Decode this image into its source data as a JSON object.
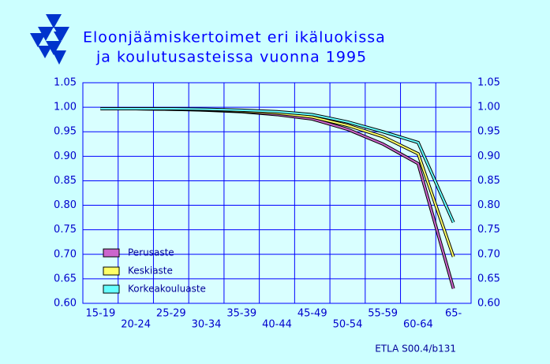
{
  "chart_data": {
    "type": "line",
    "title": [
      "Eloonjäämiskertoimet  eri  ikäluokissa",
      "ja  koulutusasteissa  vuonna  1995"
    ],
    "source": "ETLA S00.4/b131",
    "categories": [
      "15-19",
      "20-24",
      "25-29",
      "30-34",
      "35-39",
      "40-44",
      "45-49",
      "50-54",
      "55-59",
      "60-64",
      "65-"
    ],
    "series": [
      {
        "name": "Perusaste",
        "color": "#cc66cc",
        "values": [
          0.997,
          0.997,
          0.996,
          0.994,
          0.991,
          0.985,
          0.976,
          0.955,
          0.925,
          0.885,
          0.63
        ]
      },
      {
        "name": "Keskiaste",
        "color": "#ffff66",
        "values": [
          0.997,
          0.997,
          0.996,
          0.995,
          0.992,
          0.988,
          0.98,
          0.963,
          0.94,
          0.905,
          0.695
        ]
      },
      {
        "name": "Korkeakouluaste",
        "color": "#66ffff",
        "values": [
          0.997,
          0.997,
          0.997,
          0.996,
          0.994,
          0.991,
          0.985,
          0.97,
          0.95,
          0.928,
          0.765
        ]
      }
    ],
    "ylim": [
      0.6,
      1.05
    ],
    "yticks": [
      {
        "value": 0.6,
        "label": "0.60"
      },
      {
        "value": 0.65,
        "label": "0.65"
      },
      {
        "value": 0.7,
        "label": "0.70"
      },
      {
        "value": 0.75,
        "label": "0.75"
      },
      {
        "value": 0.8,
        "label": "0.80"
      },
      {
        "value": 0.85,
        "label": "0.85"
      },
      {
        "value": 0.9,
        "label": "0.90"
      },
      {
        "value": 0.95,
        "label": "0.95"
      },
      {
        "value": 1,
        "label": "1.00"
      },
      {
        "value": 1.05,
        "label": "1.05"
      }
    ],
    "grid": true
  }
}
